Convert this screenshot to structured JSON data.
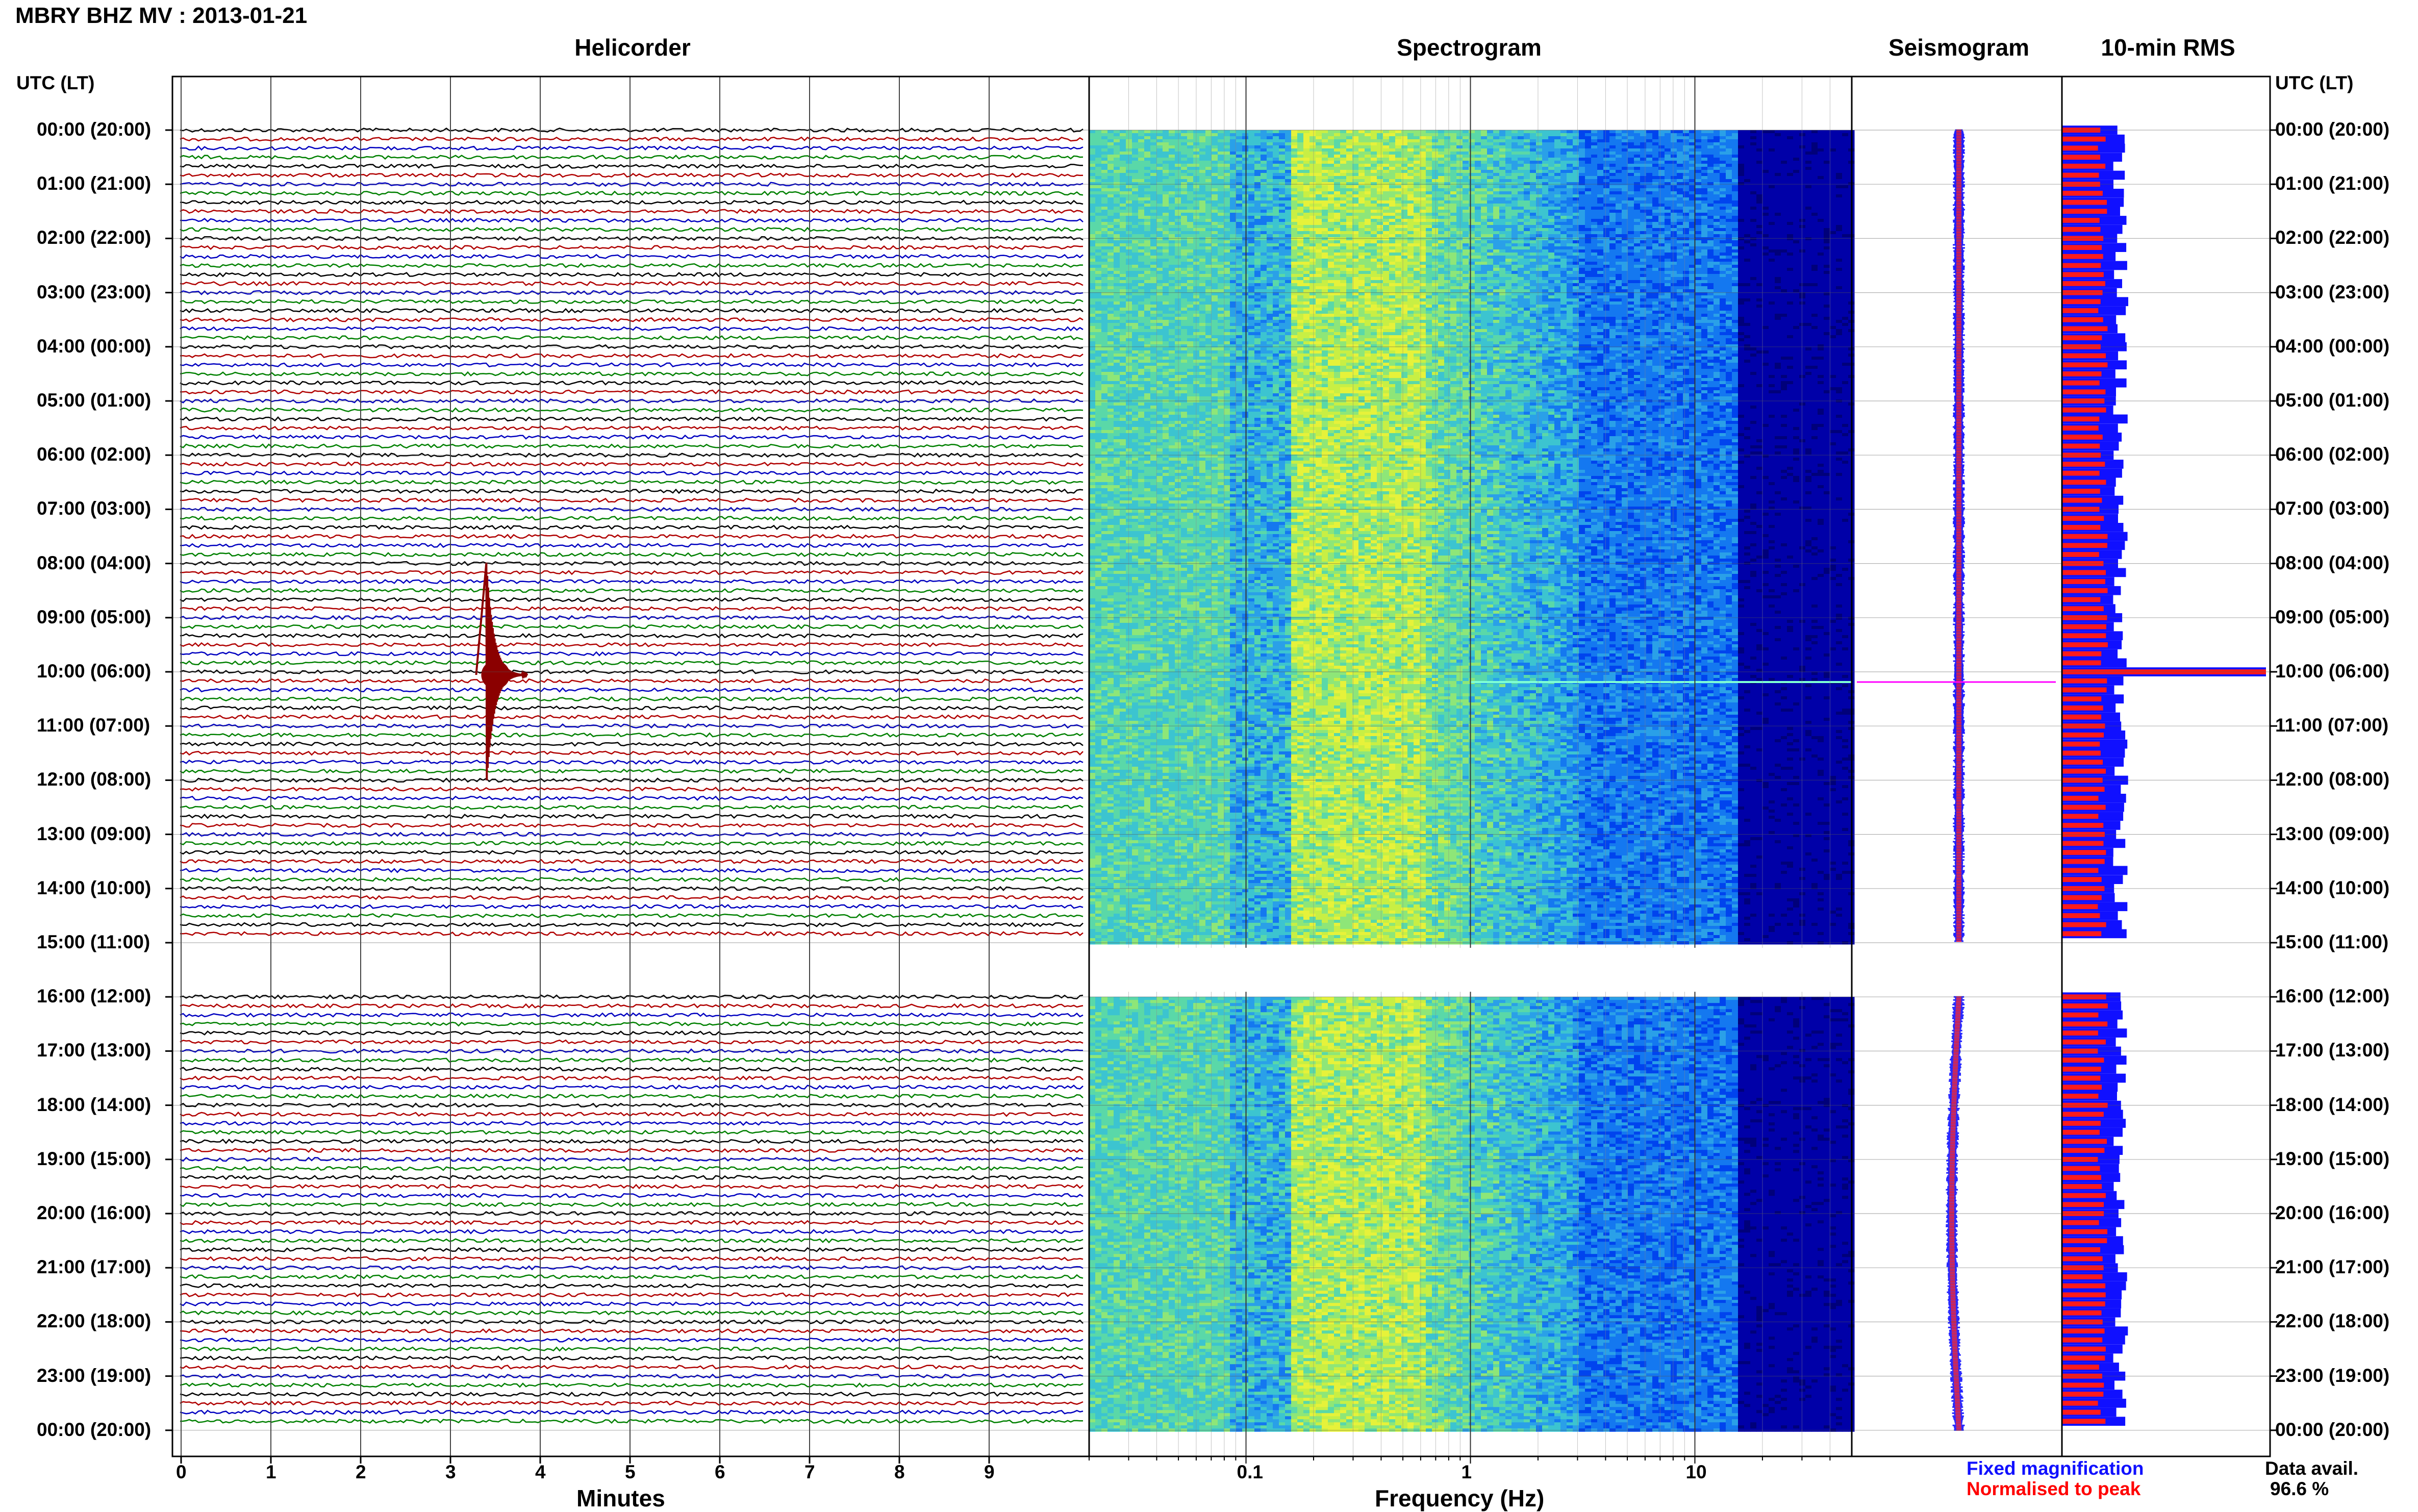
{
  "header": {
    "title": "MBRY BHZ MV : 2013-01-21"
  },
  "panels": {
    "helicorder": "Helicorder",
    "spectrogram": "Spectrogram",
    "seismogram": "Seismogram",
    "rms": "10-min RMS"
  },
  "time_axis": {
    "label_left": "UTC (LT)",
    "label_right": "UTC (LT)",
    "ticks": [
      "00:00 (20:00)",
      "01:00 (21:00)",
      "02:00 (22:00)",
      "03:00 (23:00)",
      "04:00 (00:00)",
      "05:00 (01:00)",
      "06:00 (02:00)",
      "07:00 (03:00)",
      "08:00 (04:00)",
      "09:00 (05:00)",
      "10:00 (06:00)",
      "11:00 (07:00)",
      "12:00 (08:00)",
      "13:00 (09:00)",
      "14:00 (10:00)",
      "15:00 (11:00)",
      "16:00 (12:00)",
      "17:00 (13:00)",
      "18:00 (14:00)",
      "19:00 (15:00)",
      "20:00 (16:00)",
      "21:00 (17:00)",
      "22:00 (18:00)",
      "23:00 (19:00)",
      "00:00 (20:00)"
    ]
  },
  "helicorder_axis": {
    "label": "Minutes",
    "ticks": [
      "0",
      "1",
      "2",
      "3",
      "4",
      "5",
      "6",
      "7",
      "8",
      "9"
    ]
  },
  "spectrogram_axis": {
    "label": "Frequency (Hz)",
    "ticks": [
      "0.1",
      "1",
      "10"
    ],
    "scale": "log"
  },
  "legend": {
    "fixed": "Fixed magnification",
    "normalised": "Normalised to peak",
    "fixed_color": "#0000ff",
    "normalised_color": "#ff0000"
  },
  "data_avail": {
    "label": "Data avail.",
    "value": "96.6 %"
  },
  "colors": {
    "trace_cycle": [
      "#000000",
      "#b00000",
      "#0000c0",
      "#008000"
    ],
    "event": "#8b0000"
  },
  "chart_data": {
    "type": "helicorder",
    "time_range_utc": [
      "00:00",
      "24:00"
    ],
    "lines_per_hour": 6,
    "minutes_per_line": 10,
    "gap_utc": [
      "15:00",
      "16:00"
    ],
    "event": {
      "utc_line": "10:00",
      "minute": 3.4
    },
    "freq_range_hz": [
      0.02,
      50
    ],
    "rms_peak_utc": "10:00"
  }
}
